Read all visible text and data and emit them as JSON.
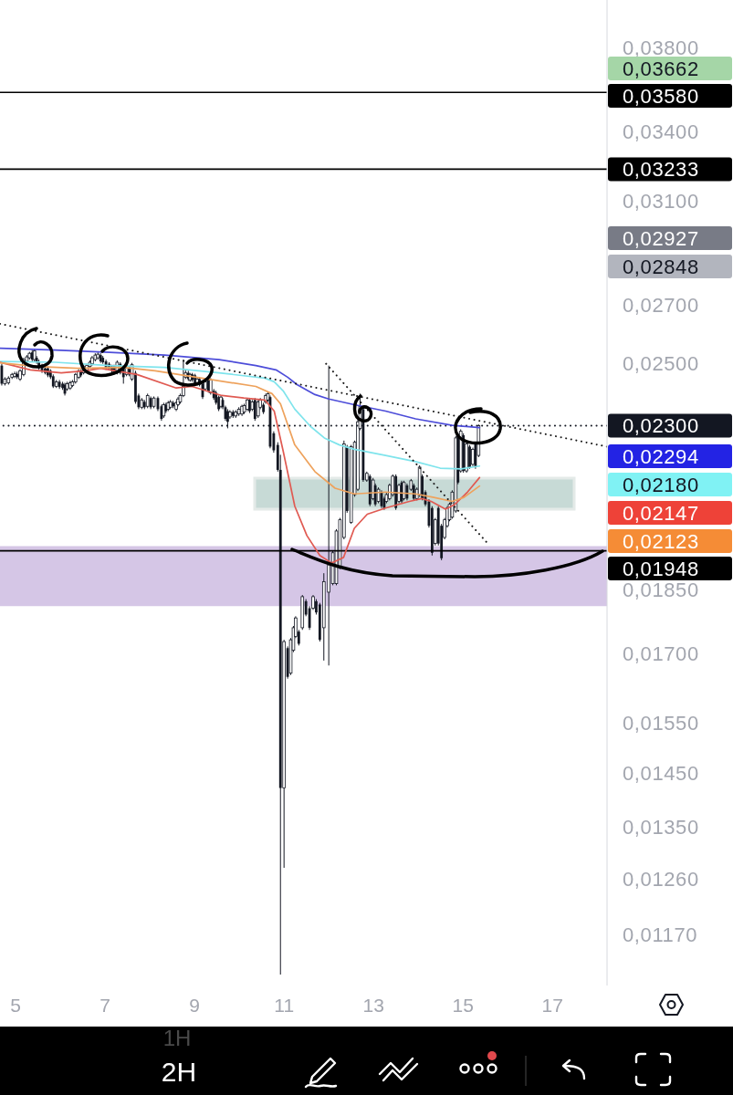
{
  "chart_data": {
    "type": "candlestick",
    "color": "#131722",
    "log": true,
    "xlim": [
      4.65,
      18.22
    ],
    "xticks": [
      5,
      7,
      9,
      11,
      13,
      15,
      17
    ],
    "ylim": [
      0.01094,
      0.04047
    ],
    "yticks": [
      {
        "value": 0.038,
        "label": "0,03800"
      },
      {
        "value": 0.034,
        "label": "0,03400"
      },
      {
        "value": 0.031,
        "label": "0,03100"
      },
      {
        "value": 0.027,
        "label": "0,02700"
      },
      {
        "value": 0.025,
        "label": "0,02500"
      },
      {
        "value": 0.0185,
        "label": "0,01850"
      },
      {
        "value": 0.017,
        "label": "0,01700"
      },
      {
        "value": 0.0155,
        "label": "0,01550"
      },
      {
        "value": 0.0145,
        "label": "0,01450"
      },
      {
        "value": 0.0135,
        "label": "0,01350"
      },
      {
        "value": 0.0126,
        "label": "0,01260"
      },
      {
        "value": 0.0117,
        "label": "0,01170"
      }
    ],
    "x": [
      4.69,
      4.76,
      4.84,
      4.92,
      4.98,
      5.03,
      5.1,
      5.18,
      5.25,
      5.31,
      5.37,
      5.42,
      5.47,
      5.52,
      5.59,
      5.66,
      5.72,
      5.78,
      5.84,
      5.91,
      5.98,
      6.05,
      6.1,
      6.15,
      6.22,
      6.27,
      6.34,
      6.41,
      6.46,
      6.52,
      6.59,
      6.66,
      6.71,
      6.78,
      6.84,
      6.9,
      6.95,
      7.02,
      7.09,
      7.15,
      7.2,
      7.27,
      7.34,
      7.41,
      7.48,
      7.54,
      7.6,
      7.68,
      7.75,
      7.82,
      7.88,
      7.95,
      8.02,
      8.09,
      8.18,
      8.26,
      8.31,
      8.36,
      8.41,
      8.46,
      8.52,
      8.59,
      8.63,
      8.68,
      8.75,
      8.8,
      8.86,
      8.9,
      8.95,
      9.01,
      9.06,
      9.11,
      9.18,
      9.24,
      9.31,
      9.36,
      9.43,
      9.48,
      9.54,
      9.59,
      9.63,
      9.69,
      9.74,
      9.79,
      9.86,
      9.92,
      9.99,
      10.06,
      10.11,
      10.18,
      10.23,
      10.29,
      10.35,
      10.42,
      10.47,
      10.54,
      10.59,
      10.64,
      10.69,
      10.77,
      10.86,
      10.92,
      11.0,
      11.08,
      11.15,
      11.21,
      11.26,
      11.33,
      11.41,
      11.49,
      11.57,
      11.65,
      11.72,
      11.8,
      11.89,
      12.0,
      12.09,
      12.17,
      12.25,
      12.34,
      12.41,
      12.5,
      12.58,
      12.65,
      12.7,
      12.77,
      12.85,
      12.92,
      12.99,
      13.04,
      13.11,
      13.18,
      13.24,
      13.29,
      13.36,
      13.43,
      13.5,
      13.57,
      13.63,
      13.68,
      13.75,
      13.84,
      13.9,
      13.97,
      14.03,
      14.09,
      14.16,
      14.24,
      14.31,
      14.38,
      14.45,
      14.52,
      14.59,
      14.65,
      14.7,
      14.76,
      14.84,
      14.89,
      14.95,
      15.01,
      15.08,
      15.15,
      15.22,
      15.28,
      15.35
    ],
    "ohlc": [
      [
        0.02491,
        0.02497,
        0.02426,
        0.02432
      ],
      [
        0.02432,
        0.02453,
        0.02426,
        0.02447
      ],
      [
        0.02435,
        0.02456,
        0.02429,
        0.0245
      ],
      [
        0.02453,
        0.02467,
        0.02447,
        0.02462
      ],
      [
        0.02456,
        0.02471,
        0.0245,
        0.02464
      ],
      [
        0.02464,
        0.02471,
        0.02447,
        0.02453
      ],
      [
        0.02447,
        0.02479,
        0.02441,
        0.02474
      ],
      [
        0.02462,
        0.02517,
        0.02456,
        0.02511
      ],
      [
        0.02505,
        0.02526,
        0.025,
        0.0252
      ],
      [
        0.02517,
        0.02537,
        0.02511,
        0.02532
      ],
      [
        0.02535,
        0.02543,
        0.02505,
        0.02511
      ],
      [
        0.02511,
        0.02546,
        0.02505,
        0.0254
      ],
      [
        0.02517,
        0.02523,
        0.02497,
        0.02502
      ],
      [
        0.02505,
        0.02511,
        0.02477,
        0.02482
      ],
      [
        0.02491,
        0.02497,
        0.02467,
        0.02474
      ],
      [
        0.02482,
        0.02488,
        0.02462,
        0.02467
      ],
      [
        0.02482,
        0.02488,
        0.02453,
        0.02459
      ],
      [
        0.02474,
        0.02479,
        0.02447,
        0.02453
      ],
      [
        0.02456,
        0.02462,
        0.02418,
        0.02423
      ],
      [
        0.02423,
        0.02444,
        0.02418,
        0.02438
      ],
      [
        0.02438,
        0.02444,
        0.02415,
        0.02421
      ],
      [
        0.02432,
        0.02438,
        0.02412,
        0.02418
      ],
      [
        0.02429,
        0.02435,
        0.02394,
        0.024
      ],
      [
        0.02415,
        0.02438,
        0.02409,
        0.02432
      ],
      [
        0.02418,
        0.02441,
        0.02412,
        0.02435
      ],
      [
        0.02426,
        0.02444,
        0.02421,
        0.02438
      ],
      [
        0.02438,
        0.02467,
        0.02432,
        0.02462
      ],
      [
        0.02453,
        0.02479,
        0.02447,
        0.02474
      ],
      [
        0.02474,
        0.02479,
        0.02453,
        0.02459
      ],
      [
        0.02467,
        0.02494,
        0.02462,
        0.02488
      ],
      [
        0.02474,
        0.02497,
        0.02467,
        0.02491
      ],
      [
        0.02488,
        0.02508,
        0.02482,
        0.02502
      ],
      [
        0.02497,
        0.02523,
        0.02491,
        0.02517
      ],
      [
        0.02511,
        0.02532,
        0.02505,
        0.02526
      ],
      [
        0.02517,
        0.02535,
        0.02511,
        0.02529
      ],
      [
        0.02526,
        0.02532,
        0.025,
        0.02505
      ],
      [
        0.02517,
        0.02523,
        0.02497,
        0.02502
      ],
      [
        0.02505,
        0.02511,
        0.02477,
        0.02482
      ],
      [
        0.02497,
        0.02502,
        0.02477,
        0.02482
      ],
      [
        0.02488,
        0.02494,
        0.02467,
        0.02474
      ],
      [
        0.02488,
        0.02494,
        0.02462,
        0.02467
      ],
      [
        0.02467,
        0.02508,
        0.02462,
        0.02502
      ],
      [
        0.02497,
        0.02502,
        0.02462,
        0.02467
      ],
      [
        0.02482,
        0.02488,
        0.02432,
        0.02453
      ],
      [
        0.02462,
        0.02488,
        0.02456,
        0.02482
      ],
      [
        0.02482,
        0.02488,
        0.02456,
        0.02462
      ],
      [
        0.02447,
        0.025,
        0.02441,
        0.02494
      ],
      [
        0.02467,
        0.02474,
        0.02368,
        0.02374
      ],
      [
        0.02394,
        0.024,
        0.02351,
        0.02357
      ],
      [
        0.02357,
        0.02386,
        0.02351,
        0.0238
      ],
      [
        0.02374,
        0.0238,
        0.02351,
        0.02357
      ],
      [
        0.0236,
        0.024,
        0.02354,
        0.02394
      ],
      [
        0.02386,
        0.02391,
        0.02351,
        0.02357
      ],
      [
        0.0236,
        0.02391,
        0.02354,
        0.02386
      ],
      [
        0.02386,
        0.02391,
        0.02345,
        0.02351
      ],
      [
        0.0236,
        0.02365,
        0.02315,
        0.02321
      ],
      [
        0.0233,
        0.02371,
        0.02324,
        0.02365
      ],
      [
        0.02365,
        0.02371,
        0.02339,
        0.02345
      ],
      [
        0.02351,
        0.02377,
        0.02345,
        0.02371
      ],
      [
        0.02357,
        0.0238,
        0.02351,
        0.02374
      ],
      [
        0.02371,
        0.02377,
        0.02354,
        0.0236
      ],
      [
        0.02351,
        0.02377,
        0.02345,
        0.02371
      ],
      [
        0.02365,
        0.02389,
        0.0236,
        0.02383
      ],
      [
        0.02374,
        0.024,
        0.02368,
        0.02394
      ],
      [
        0.02394,
        0.02511,
        0.02389,
        0.02423
      ],
      [
        0.02453,
        0.02477,
        0.02447,
        0.02467
      ],
      [
        0.02467,
        0.02474,
        0.02441,
        0.02447
      ],
      [
        0.02444,
        0.02467,
        0.02438,
        0.02462
      ],
      [
        0.02462,
        0.02467,
        0.02438,
        0.02444
      ],
      [
        0.02459,
        0.02464,
        0.02426,
        0.02432
      ],
      [
        0.02432,
        0.02453,
        0.02426,
        0.02447
      ],
      [
        0.02447,
        0.02453,
        0.02423,
        0.02429
      ],
      [
        0.02432,
        0.02438,
        0.02383,
        0.02389
      ],
      [
        0.02415,
        0.02444,
        0.02409,
        0.02438
      ],
      [
        0.02444,
        0.0245,
        0.02403,
        0.02409
      ],
      [
        0.02403,
        0.0245,
        0.02397,
        0.02444
      ],
      [
        0.02409,
        0.02415,
        0.0238,
        0.02386
      ],
      [
        0.02403,
        0.02409,
        0.02365,
        0.02371
      ],
      [
        0.02389,
        0.02394,
        0.02345,
        0.02351
      ],
      [
        0.0236,
        0.02394,
        0.02354,
        0.02389
      ],
      [
        0.0238,
        0.02386,
        0.02351,
        0.02357
      ],
      [
        0.02357,
        0.02362,
        0.02315,
        0.02321
      ],
      [
        0.02345,
        0.02351,
        0.02292,
        0.02312
      ],
      [
        0.02327,
        0.02348,
        0.02321,
        0.02342
      ],
      [
        0.02342,
        0.02348,
        0.02324,
        0.0233
      ],
      [
        0.0233,
        0.02348,
        0.02324,
        0.02342
      ],
      [
        0.02336,
        0.02357,
        0.0233,
        0.02351
      ],
      [
        0.02336,
        0.02365,
        0.0233,
        0.0236
      ],
      [
        0.02342,
        0.02368,
        0.02336,
        0.02362
      ],
      [
        0.02351,
        0.02386,
        0.02345,
        0.0238
      ],
      [
        0.0238,
        0.02386,
        0.02339,
        0.02345
      ],
      [
        0.02351,
        0.0238,
        0.02345,
        0.02374
      ],
      [
        0.0238,
        0.02386,
        0.02315,
        0.02321
      ],
      [
        0.0233,
        0.0238,
        0.02324,
        0.02374
      ],
      [
        0.02357,
        0.02386,
        0.02351,
        0.0238
      ],
      [
        0.02365,
        0.02371,
        0.02336,
        0.02342
      ],
      [
        0.02374,
        0.024,
        0.02368,
        0.02394
      ],
      [
        0.0238,
        0.02406,
        0.02374,
        0.024
      ],
      [
        0.02389,
        0.02394,
        0.02232,
        0.02237
      ],
      [
        0.02277,
        0.02283,
        0.02219,
        0.02226
      ],
      [
        0.02242,
        0.0225,
        0.02164,
        0.02169
      ],
      [
        0.02169,
        0.02213,
        0.0111,
        0.01422
      ],
      [
        0.01422,
        0.01731,
        0.01279,
        0.01727
      ],
      [
        0.01712,
        0.01716,
        0.01644,
        0.01648
      ],
      [
        0.01656,
        0.01735,
        0.01652,
        0.01731
      ],
      [
        0.01707,
        0.01763,
        0.01703,
        0.01759
      ],
      [
        0.01739,
        0.01786,
        0.01735,
        0.01782
      ],
      [
        0.0175,
        0.01754,
        0.01718,
        0.01722
      ],
      [
        0.01759,
        0.01837,
        0.01754,
        0.01833
      ],
      [
        0.01822,
        0.01827,
        0.01786,
        0.0179
      ],
      [
        0.01805,
        0.0181,
        0.01754,
        0.01759
      ],
      [
        0.01805,
        0.01837,
        0.01801,
        0.01833
      ],
      [
        0.01822,
        0.01827,
        0.0179,
        0.01795
      ],
      [
        0.01814,
        0.01818,
        0.01727,
        0.01731
      ],
      [
        0.01759,
        0.01891,
        0.01684,
        0.0187
      ],
      [
        0.01844,
        0.02491,
        0.01673,
        0.01912
      ],
      [
        0.01865,
        0.01948,
        0.01861,
        0.01943
      ],
      [
        0.01865,
        0.02005,
        0.01861,
        0.02
      ],
      [
        0.01905,
        0.02035,
        0.01901,
        0.0203
      ],
      [
        0.01983,
        0.02255,
        0.01978,
        0.02245
      ],
      [
        0.02237,
        0.02242,
        0.02049,
        0.02054
      ],
      [
        0.02023,
        0.02242,
        0.02019,
        0.02237
      ],
      [
        0.02099,
        0.02255,
        0.02093,
        0.0225
      ],
      [
        0.02114,
        0.02318,
        0.02109,
        0.02312
      ],
      [
        0.02292,
        0.024,
        0.02286,
        0.0236
      ],
      [
        0.02351,
        0.02357,
        0.02135,
        0.0214
      ],
      [
        0.0214,
        0.02164,
        0.02135,
        0.02159
      ],
      [
        0.02151,
        0.02156,
        0.02067,
        0.02072
      ],
      [
        0.02088,
        0.02146,
        0.02083,
        0.0214
      ],
      [
        0.02125,
        0.0213,
        0.02067,
        0.02072
      ],
      [
        0.0208,
        0.02119,
        0.02075,
        0.02114
      ],
      [
        0.02106,
        0.02111,
        0.02062,
        0.02067
      ],
      [
        0.02088,
        0.02093,
        0.02057,
        0.02062
      ],
      [
        0.0208,
        0.02104,
        0.02075,
        0.02099
      ],
      [
        0.02088,
        0.0213,
        0.02083,
        0.02125
      ],
      [
        0.02099,
        0.02156,
        0.02093,
        0.02151
      ],
      [
        0.02151,
        0.02156,
        0.02057,
        0.02062
      ],
      [
        0.0208,
        0.0213,
        0.02075,
        0.02125
      ],
      [
        0.02133,
        0.02138,
        0.02075,
        0.0208
      ],
      [
        0.02088,
        0.02138,
        0.02083,
        0.02133
      ],
      [
        0.02125,
        0.0213,
        0.02083,
        0.02088
      ],
      [
        0.02114,
        0.02143,
        0.02109,
        0.02138
      ],
      [
        0.02125,
        0.0213,
        0.02083,
        0.02088
      ],
      [
        0.02088,
        0.02119,
        0.02083,
        0.02114
      ],
      [
        0.02099,
        0.02182,
        0.02093,
        0.02177
      ],
      [
        0.02151,
        0.02156,
        0.02083,
        0.02088
      ],
      [
        0.02106,
        0.02111,
        0.02067,
        0.02072
      ],
      [
        0.0208,
        0.02086,
        0.02009,
        0.02014
      ],
      [
        0.02062,
        0.02067,
        0.01936,
        0.01943
      ],
      [
        0.01967,
        0.02035,
        0.01962,
        0.0203
      ],
      [
        0.02062,
        0.02067,
        0.01962,
        0.01967
      ],
      [
        0.02014,
        0.02019,
        0.01924,
        0.01929
      ],
      [
        0.01983,
        0.02035,
        0.01978,
        0.0203
      ],
      [
        0.02014,
        0.02067,
        0.02009,
        0.02062
      ],
      [
        0.0203,
        0.02077,
        0.02026,
        0.02072
      ],
      [
        0.02037,
        0.02111,
        0.02033,
        0.02106
      ],
      [
        0.02054,
        0.02269,
        0.02049,
        0.02263
      ],
      [
        0.02271,
        0.02277,
        0.02128,
        0.02133
      ],
      [
        0.02166,
        0.02289,
        0.02161,
        0.02283
      ],
      [
        0.02271,
        0.02277,
        0.02161,
        0.02166
      ],
      [
        0.02166,
        0.0225,
        0.02161,
        0.02245
      ],
      [
        0.02237,
        0.02242,
        0.02172,
        0.02177
      ],
      [
        0.02185,
        0.02234,
        0.0218,
        0.02229
      ],
      [
        0.02245,
        0.0225,
        0.02172,
        0.02177
      ],
      [
        0.02211,
        0.02304,
        0.02206,
        0.023
      ]
    ],
    "series": [
      {
        "type": "line",
        "color": "#4d4dd9",
        "x": [
          4.65,
          5.88,
          7.1,
          8.33,
          9.55,
          10.37,
          10.82,
          11.08,
          11.29,
          11.69,
          12.0,
          12.57,
          13.27,
          13.94,
          14.76,
          15.37
        ],
        "values": [
          0.02549,
          0.02543,
          0.02535,
          0.02526,
          0.02511,
          0.02491,
          0.02477,
          0.02453,
          0.02429,
          0.02397,
          0.02383,
          0.02365,
          0.02345,
          0.02321,
          0.02301,
          0.02294
        ]
      },
      {
        "type": "line",
        "color": "#7fe4ec",
        "x": [
          4.65,
          5.88,
          7.1,
          8.33,
          9.55,
          10.57,
          10.78,
          10.98,
          11.24,
          11.59,
          11.9,
          12.24,
          12.57,
          13.27,
          13.94,
          14.49,
          14.96,
          15.37
        ],
        "values": [
          0.02505,
          0.02502,
          0.02491,
          0.02485,
          0.02467,
          0.0245,
          0.02438,
          0.02409,
          0.02351,
          0.02298,
          0.02263,
          0.02242,
          0.02229,
          0.02211,
          0.02193,
          0.02174,
          0.02172,
          0.0218
        ]
      },
      {
        "type": "line",
        "color": "#e05a52",
        "x": [
          4.65,
          5.33,
          6.02,
          6.55,
          6.9,
          7.71,
          8.59,
          8.94,
          9.61,
          10.1,
          10.57,
          10.78,
          10.98,
          11.24,
          11.51,
          11.8,
          12.06,
          12.33,
          12.57,
          12.86,
          13.27,
          13.8,
          14.08,
          14.29,
          14.61,
          14.82,
          15.1,
          15.37
        ],
        "values": [
          0.02502,
          0.02477,
          0.02467,
          0.02474,
          0.02482,
          0.02462,
          0.02418,
          0.02423,
          0.02394,
          0.02386,
          0.0238,
          0.02345,
          0.02224,
          0.02067,
          0.01988,
          0.01936,
          0.01917,
          0.01931,
          0.02007,
          0.02045,
          0.02062,
          0.0208,
          0.02088,
          0.0208,
          0.02059,
          0.02072,
          0.02106,
          0.02147
        ]
      },
      {
        "type": "line",
        "color": "#eea25c",
        "x": [
          4.65,
          5.47,
          6.39,
          7.41,
          8.12,
          9.29,
          10.37,
          10.73,
          10.92,
          11.24,
          11.69,
          12.14,
          12.57,
          13.27,
          13.94,
          14.35,
          14.76,
          15.02,
          15.37
        ],
        "values": [
          0.025,
          0.02488,
          0.02482,
          0.02485,
          0.02474,
          0.02447,
          0.02423,
          0.024,
          0.02368,
          0.02242,
          0.02164,
          0.02117,
          0.02101,
          0.02106,
          0.02101,
          0.02091,
          0.0208,
          0.02091,
          0.02123
        ]
      },
      {
        "type": "line",
        "color": "#1a1a1a",
        "line_style": "dotted",
        "x": [
          4.65,
          18.22
        ],
        "values": [
          0.02633,
          0.02237
        ]
      },
      {
        "type": "line",
        "color": "#1a1a1a",
        "line_style": "dotted",
        "x": [
          11.94,
          15.57
        ],
        "values": [
          0.02497,
          0.01965
        ]
      }
    ],
    "ref_lines": [
      {
        "axis": "y",
        "value": 0.0358,
        "label": "0,03580",
        "color": "#000000",
        "line_style": "solid"
      },
      {
        "axis": "y",
        "value": 0.03233,
        "label": "0,03233",
        "color": "#000000",
        "line_style": "solid"
      },
      {
        "axis": "y",
        "value": 0.023,
        "label": "0,02300",
        "color": "#131722",
        "line_style": "dotted"
      },
      {
        "axis": "y",
        "value": 0.01948,
        "label": "0,01948",
        "color": "#000000",
        "line_style": "solid"
      }
    ],
    "bands": [
      {
        "axis": "y",
        "from": 0.0181,
        "to": 0.0196,
        "color": "#d5c6e6"
      }
    ],
    "annotations": [
      "0,03662",
      "0,02927",
      "0,02848",
      "0,02294",
      "0,02180",
      "0,02147",
      "0,02123",
      "2H",
      "1H"
    ]
  }
}
